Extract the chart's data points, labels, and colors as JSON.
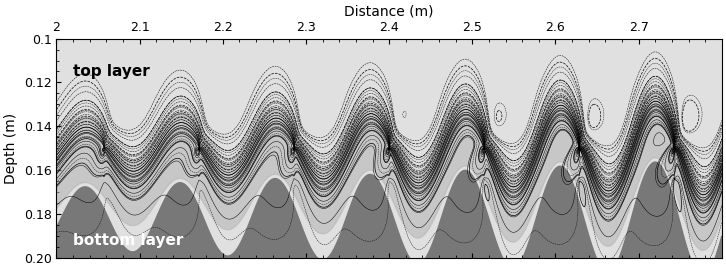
{
  "x_min": 2.0,
  "x_max": 2.8,
  "y_min": 0.1,
  "y_max": 0.2,
  "xlabel": "Distance (m)",
  "ylabel": "Depth (m)",
  "xlabel_fontsize": 10,
  "ylabel_fontsize": 10,
  "tick_fontsize": 9,
  "top_label": "top layer",
  "bottom_label": "bottom layer",
  "top_bg_color": "#e0e0e0",
  "bottom_bg_color": "#787878",
  "interface_mean_depth": 0.15,
  "interface_amplitude": 0.022,
  "num_billows": 7,
  "x_ticks": [
    2.0,
    2.1,
    2.2,
    2.3,
    2.4,
    2.5,
    2.6,
    2.7
  ],
  "y_ticks": [
    0.1,
    0.12,
    0.14,
    0.16,
    0.18,
    0.2
  ],
  "figsize": [
    7.26,
    2.7
  ],
  "dpi": 100
}
